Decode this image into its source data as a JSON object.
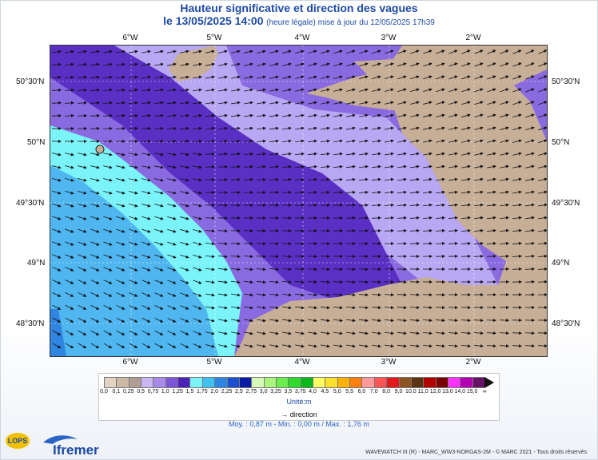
{
  "header": {
    "title": "Hauteur significative et direction des vagues",
    "date_prefix": "le 13/05/2025 14:00",
    "update_note": "(heure légale) mise à jour du 12/05/2025 17h39"
  },
  "map": {
    "lon_labels": [
      "6°W",
      "5°W",
      "4°W",
      "3°W",
      "2°W"
    ],
    "lat_labels": [
      "50°30'N",
      "50°N",
      "49°30'N",
      "49°N",
      "48°30'N"
    ],
    "colors": {
      "land": "#c7ae96",
      "deep_purple": "#5a2fc4",
      "mid_purple": "#8a6ae0",
      "light_purple": "#b8a7f3",
      "cyan": "#7af4f9",
      "blue": "#4fb6f0",
      "mid_blue": "#2f85e0",
      "arrow": "#111111"
    }
  },
  "legend": {
    "ticks": [
      "0,0",
      "0,1",
      "0,25",
      "0,5",
      "0,75",
      "1,0",
      "1,25",
      "1,5",
      "1,75",
      "2,0",
      "2,25",
      "2,5",
      "2,75",
      "3,0",
      "3,25",
      "3,5",
      "3,75",
      "4,0",
      "4,5",
      "5,0",
      "5,5",
      "6,0",
      "7,0",
      "8,0",
      "9,0",
      "10,0",
      "11,0",
      "12,0",
      "13,0",
      "14,0",
      "15,0",
      "∞"
    ],
    "colors": [
      "#e4d3c2",
      "#cbb8a5",
      "#b29d95",
      "#c9b7f4",
      "#a78ae8",
      "#7b56d6",
      "#4c22b8",
      "#7af4f9",
      "#3fc1f1",
      "#2b86e4",
      "#1c50cf",
      "#0a1ba5",
      "#d8f8b5",
      "#a9f57f",
      "#6bee4e",
      "#2fdb2a",
      "#0bb81b",
      "#ffff66",
      "#fce12c",
      "#ffb300",
      "#ff7e10",
      "#ff9a9a",
      "#ff5555",
      "#e11b1b",
      "#8c5420",
      "#5c3310",
      "#b30000",
      "#7a0000",
      "#ff33ff",
      "#b300b3",
      "#661166"
    ],
    "unit_label": "Unité:m",
    "direction_label": "direction",
    "stats": "Moy. : 0,87 m   -   Min. : 0,00 m / Max. : 1,76 m"
  },
  "footer": {
    "credit": "WAVEWATCH III (R) - MARC_WW3-NORGAS-2M - © MARC 2021 - Tous droits réservés",
    "logo_lops": "LOPS",
    "logo_ifremer": "Ifremer"
  }
}
